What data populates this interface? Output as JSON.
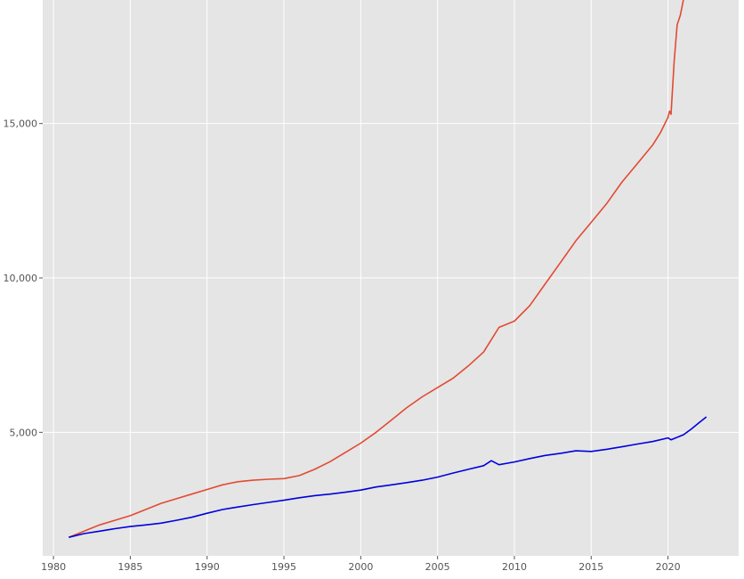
{
  "chart_data": {
    "type": "line",
    "title": "",
    "xlabel": "",
    "ylabel": "",
    "xlim": [
      1979.3,
      2024.6
    ],
    "ylim": [
      1000,
      19000
    ],
    "grid": true,
    "legend": "none",
    "colors": {
      "background": "#e5e5e5",
      "grid": "#ffffff",
      "tick_text": "#555555"
    },
    "x_ticks": [
      {
        "value": 1980,
        "label": "1980"
      },
      {
        "value": 1985,
        "label": "1985"
      },
      {
        "value": 1990,
        "label": "1990"
      },
      {
        "value": 1995,
        "label": "1995"
      },
      {
        "value": 2000,
        "label": "2000"
      },
      {
        "value": 2005,
        "label": "2005"
      },
      {
        "value": 2010,
        "label": "2010"
      },
      {
        "value": 2015,
        "label": "2015"
      },
      {
        "value": 2020,
        "label": "2020"
      }
    ],
    "y_ticks": [
      {
        "value": 5000,
        "label": "5,000"
      },
      {
        "value": 10000,
        "label": "10,000"
      },
      {
        "value": 15000,
        "label": "15,000"
      }
    ],
    "series": [
      {
        "color": "#e24a33",
        "x": [
          1981,
          1982,
          1983,
          1984,
          1985,
          1986,
          1987,
          1988,
          1989,
          1990,
          1991,
          1992,
          1993,
          1994,
          1995,
          1996,
          1997,
          1998,
          1999,
          2000,
          2001,
          2002,
          2003,
          2004,
          2005,
          2006,
          2007,
          2008,
          2008.5,
          2009,
          2010,
          2011,
          2012,
          2013,
          2014,
          2015,
          2016,
          2017,
          2018,
          2019,
          2019.5,
          2020,
          2020.1,
          2020.2,
          2020.4,
          2020.6,
          2020.8,
          2021
        ],
        "y": [
          1600,
          1800,
          2000,
          2150,
          2300,
          2500,
          2700,
          2850,
          3000,
          3150,
          3300,
          3400,
          3450,
          3480,
          3500,
          3600,
          3800,
          4050,
          4350,
          4650,
          5000,
          5400,
          5800,
          6150,
          6450,
          6750,
          7150,
          7600,
          8000,
          8400,
          8600,
          9100,
          9800,
          10500,
          11200,
          11800,
          12400,
          13100,
          13700,
          14300,
          14700,
          15200,
          15400,
          15300,
          17000,
          18200,
          18500,
          19000
        ]
      },
      {
        "color": "#0000dd",
        "x": [
          1981,
          1982,
          1983,
          1984,
          1985,
          1986,
          1987,
          1988,
          1989,
          1990,
          1991,
          1992,
          1993,
          1994,
          1995,
          1996,
          1997,
          1998,
          1999,
          2000,
          2001,
          2002,
          2003,
          2004,
          2005,
          2006,
          2007,
          2008,
          2008.5,
          2009,
          2010,
          2011,
          2012,
          2013,
          2014,
          2015,
          2016,
          2017,
          2018,
          2019,
          2020,
          2020.2,
          2020.5,
          2021,
          2021.5,
          2022,
          2022.5
        ],
        "y": [
          1600,
          1720,
          1800,
          1880,
          1950,
          2000,
          2060,
          2150,
          2250,
          2380,
          2500,
          2580,
          2660,
          2730,
          2800,
          2880,
          2950,
          3000,
          3060,
          3130,
          3230,
          3300,
          3370,
          3450,
          3550,
          3680,
          3800,
          3920,
          4080,
          3950,
          4040,
          4150,
          4250,
          4320,
          4400,
          4380,
          4450,
          4530,
          4620,
          4700,
          4820,
          4760,
          4820,
          4920,
          5100,
          5300,
          5500
        ]
      }
    ]
  }
}
